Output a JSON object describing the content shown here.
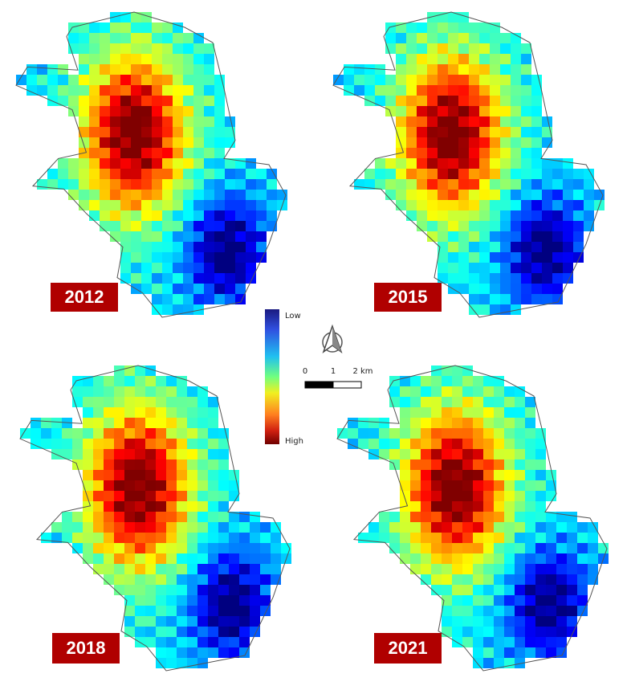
{
  "panels": [
    {
      "year": "2012"
    },
    {
      "year": "2015"
    },
    {
      "year": "2018"
    },
    {
      "year": "2021"
    }
  ],
  "legend": {
    "low": "Low",
    "high": "High"
  },
  "scale_bar": {
    "labels": [
      "0",
      "1",
      "2 km"
    ]
  }
}
